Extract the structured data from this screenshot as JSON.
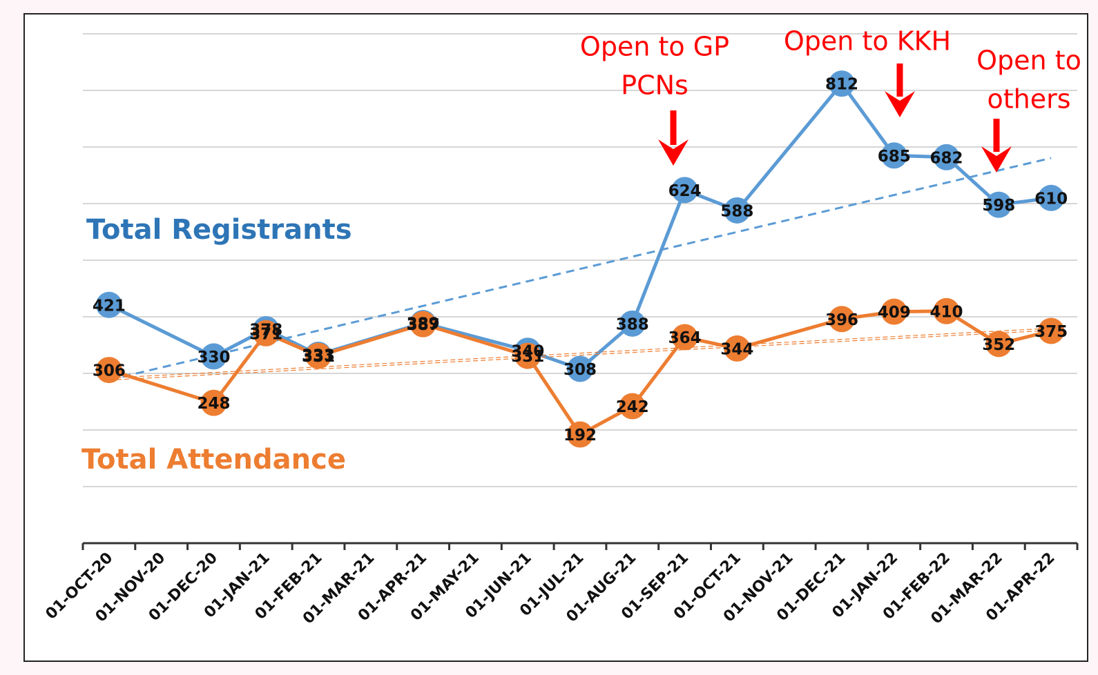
{
  "chart_data": {
    "type": "line",
    "x": [
      0.5,
      2.5,
      3.5,
      4.5,
      6.5,
      8.5,
      9.5,
      10.5,
      11.5,
      12.5,
      14.5,
      15.5,
      16.5,
      17.5,
      18.5
    ],
    "xlim": [
      0,
      19
    ],
    "xticks": [
      {
        "value": 0,
        "label": "01-OCT-20"
      },
      {
        "value": 1,
        "label": "01-NOV-20"
      },
      {
        "value": 2,
        "label": "01-DEC-20"
      },
      {
        "value": 3,
        "label": "01-JAN-21"
      },
      {
        "value": 4,
        "label": "01-FEB-21"
      },
      {
        "value": 5,
        "label": "01-MAR-21"
      },
      {
        "value": 6,
        "label": "01-APR-21"
      },
      {
        "value": 7,
        "label": "01-MAY-21"
      },
      {
        "value": 8,
        "label": "01-JUN-21"
      },
      {
        "value": 9,
        "label": "01-JUL-21"
      },
      {
        "value": 10,
        "label": "01-AUG-21"
      },
      {
        "value": 11,
        "label": "01-SEP-21"
      },
      {
        "value": 12,
        "label": "01-OCT-21"
      },
      {
        "value": 13,
        "label": "01-NOV-21"
      },
      {
        "value": 14,
        "label": "01-DEC-21"
      },
      {
        "value": 15,
        "label": "01-JAN-22"
      },
      {
        "value": 16,
        "label": "01-FEB-22"
      },
      {
        "value": 17,
        "label": "01-MAR-22"
      },
      {
        "value": 18,
        "label": "01-APR-22"
      }
    ],
    "ylim": [
      0,
      900
    ],
    "yticks": [
      0,
      100,
      200,
      300,
      400,
      500,
      600,
      700,
      800,
      900
    ],
    "grid": true,
    "series": [
      {
        "name": "Total Registrants",
        "color": "#5b9bd5",
        "label_color": "#2e75b6",
        "trendline": true,
        "values": [
          421,
          330,
          378,
          333,
          389,
          340,
          308,
          388,
          624,
          588,
          812,
          685,
          682,
          598,
          610
        ]
      },
      {
        "name": "Total Attendance",
        "color": "#ed7d31",
        "label_color": "#ed7d31",
        "trendline": true,
        "values": [
          306,
          248,
          371,
          331,
          387,
          331,
          192,
          242,
          364,
          344,
          396,
          409,
          410,
          352,
          375
        ]
      }
    ],
    "annotations": [
      {
        "lines": [
          "Open to GP",
          "PCNs"
        ]
      },
      {
        "lines": [
          "Open to KKH"
        ]
      },
      {
        "lines": [
          "Open to",
          "others"
        ]
      }
    ],
    "annotation_color": "#ff0000"
  }
}
